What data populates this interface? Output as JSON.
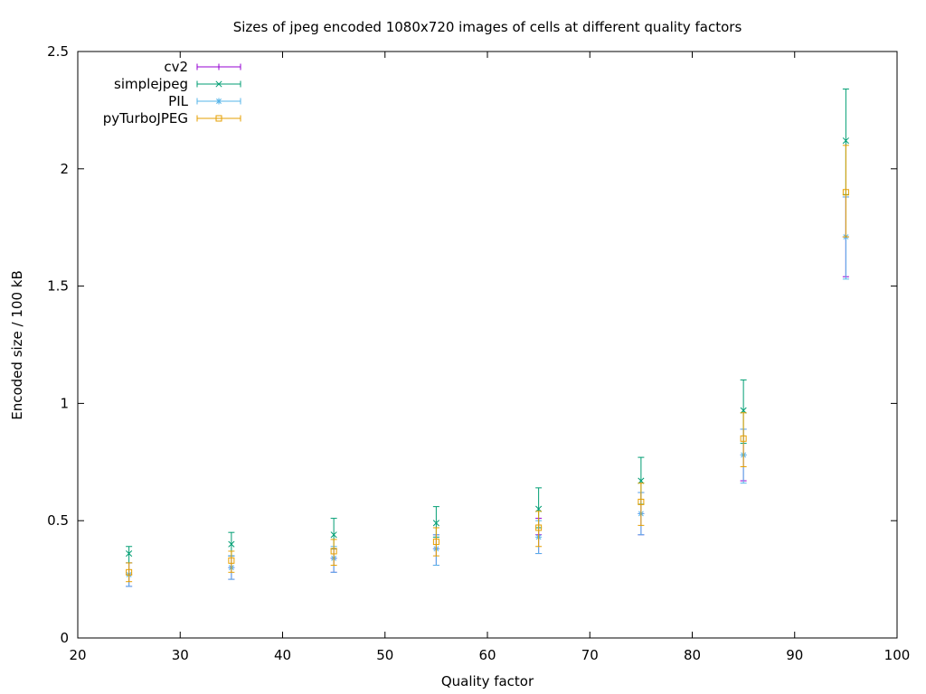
{
  "chart_data": {
    "type": "scatter",
    "title": "Sizes of jpeg encoded 1080x720 images of cells at different quality factors",
    "xlabel": "Quality factor",
    "ylabel": "Encoded size / 100 kB",
    "xlim": [
      20,
      100
    ],
    "ylim": [
      0,
      2.5
    ],
    "xticks": [
      20,
      30,
      40,
      50,
      60,
      70,
      80,
      90,
      100
    ],
    "yticks": [
      0,
      0.5,
      1,
      1.5,
      2,
      2.5
    ],
    "xtick_labels": [
      "20",
      "30",
      "40",
      "50",
      "60",
      "70",
      "80",
      "90",
      "100"
    ],
    "ytick_labels": [
      "0",
      "0.5",
      "1",
      "1.5",
      "2",
      "2.5"
    ],
    "grid": false,
    "legend_position": "top-left",
    "x": [
      25,
      35,
      45,
      55,
      65,
      75,
      85,
      95
    ],
    "series": [
      {
        "name": "cv2",
        "color": "#9400d3",
        "marker": "plus",
        "y": [
          0.27,
          0.3,
          0.34,
          0.38,
          0.44,
          0.53,
          0.78,
          1.71
        ],
        "yerr_low": [
          0.22,
          0.25,
          0.28,
          0.31,
          0.36,
          0.44,
          0.67,
          1.54
        ],
        "yerr_high": [
          0.32,
          0.35,
          0.38,
          0.44,
          0.51,
          0.62,
          0.89,
          1.88
        ]
      },
      {
        "name": "simplejpeg",
        "color": "#009e73",
        "marker": "cross",
        "y": [
          0.36,
          0.4,
          0.44,
          0.49,
          0.55,
          0.67,
          0.97,
          2.12
        ],
        "yerr_low": [
          0.32,
          0.35,
          0.38,
          0.43,
          0.47,
          0.57,
          0.83,
          1.89
        ],
        "yerr_high": [
          0.39,
          0.45,
          0.51,
          0.56,
          0.64,
          0.77,
          1.1,
          2.34
        ]
      },
      {
        "name": "PIL",
        "color": "#56b4e9",
        "marker": "star",
        "y": [
          0.27,
          0.3,
          0.34,
          0.38,
          0.43,
          0.53,
          0.78,
          1.71
        ],
        "yerr_low": [
          0.22,
          0.25,
          0.28,
          0.31,
          0.36,
          0.44,
          0.66,
          1.53
        ],
        "yerr_high": [
          0.32,
          0.35,
          0.39,
          0.44,
          0.5,
          0.62,
          0.89,
          1.88
        ]
      },
      {
        "name": "pyTurboJPEG",
        "color": "#e69f00",
        "marker": "square",
        "y": [
          0.28,
          0.33,
          0.37,
          0.41,
          0.47,
          0.58,
          0.85,
          1.9
        ],
        "yerr_low": [
          0.24,
          0.28,
          0.31,
          0.35,
          0.39,
          0.48,
          0.73,
          1.71
        ],
        "yerr_high": [
          0.32,
          0.37,
          0.42,
          0.47,
          0.54,
          0.66,
          0.96,
          2.1
        ]
      }
    ]
  }
}
